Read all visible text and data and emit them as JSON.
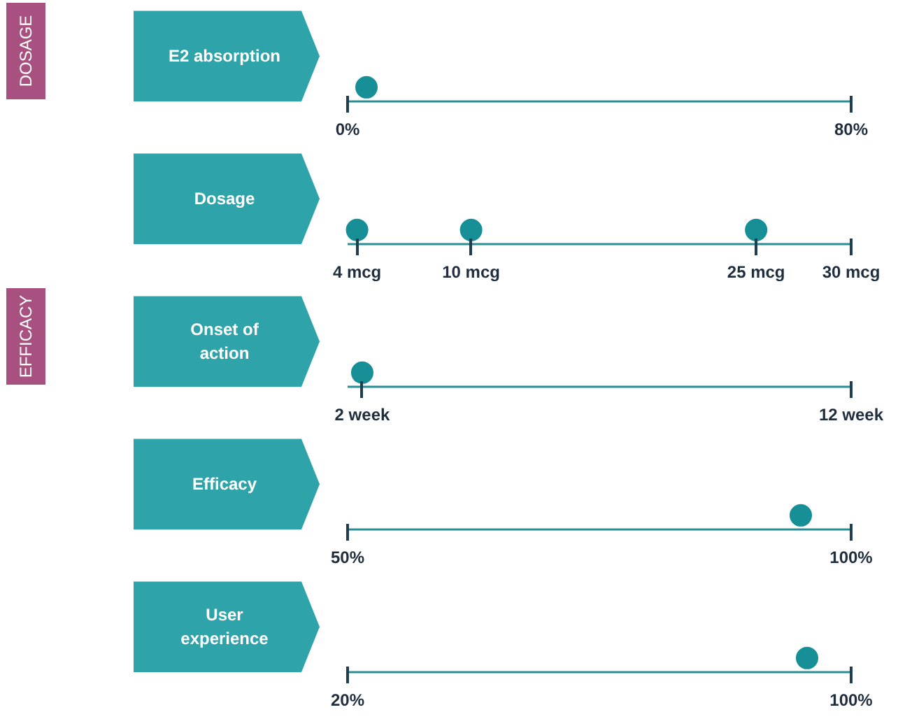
{
  "chart_data": [
    {
      "type": "scatter",
      "orientation": "horizontal",
      "categories": [
        "E2 absorption"
      ],
      "values": [
        3
      ],
      "color": "#168f96",
      "marker": "circle",
      "xlim": [
        0,
        80
      ],
      "xticks": [
        {
          "value": 0,
          "label": "0%"
        },
        {
          "value": 80,
          "label": "80%"
        }
      ],
      "annotations": [
        "DOSAGE"
      ]
    },
    {
      "type": "scatter",
      "orientation": "horizontal",
      "categories": [
        "Dosage"
      ],
      "series": [
        {
          "values": [
            4
          ],
          "color": "#168f96"
        },
        {
          "values": [
            10
          ],
          "color": "#168f96"
        },
        {
          "values": [
            25
          ],
          "color": "#168f96"
        }
      ],
      "marker": "circle",
      "xlim": [
        3.5,
        30
      ],
      "xticks": [
        {
          "value": 4,
          "label": "4 mcg"
        },
        {
          "value": 10,
          "label": "10 mcg"
        },
        {
          "value": 25,
          "label": "25 mcg"
        },
        {
          "value": 30,
          "label": "30 mcg"
        }
      ]
    },
    {
      "type": "scatter",
      "orientation": "horizontal",
      "categories": [
        "Onset of action"
      ],
      "values": [
        2
      ],
      "color": "#168f96",
      "marker": "circle",
      "xlim": [
        1.7,
        12
      ],
      "xticks": [
        {
          "value": 2,
          "label": "2 week"
        },
        {
          "value": 12,
          "label": "12 week"
        }
      ],
      "annotations": [
        "EFFICACY"
      ]
    },
    {
      "type": "scatter",
      "orientation": "horizontal",
      "categories": [
        "Efficacy"
      ],
      "values": [
        95
      ],
      "color": "#168f96",
      "marker": "circle",
      "xlim": [
        50,
        100
      ],
      "xticks": [
        {
          "value": 50,
          "label": "50%"
        },
        {
          "value": 100,
          "label": "100%"
        }
      ]
    },
    {
      "type": "scatter",
      "orientation": "horizontal",
      "categories": [
        "User experience"
      ],
      "values": [
        93
      ],
      "color": "#168f96",
      "marker": "circle",
      "xlim": [
        20,
        100
      ],
      "xticks": [
        {
          "value": 20,
          "label": "20%"
        },
        {
          "value": 100,
          "label": "100%"
        }
      ]
    }
  ]
}
